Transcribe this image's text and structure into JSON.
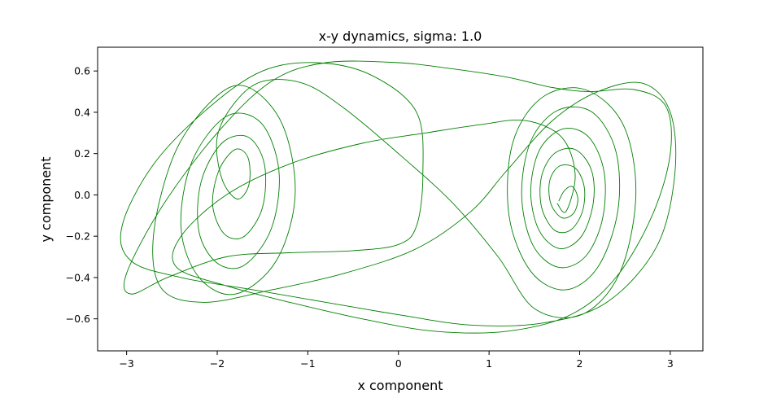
{
  "chart_data": {
    "type": "line",
    "title": "x-y dynamics, sigma: 1.0",
    "xlabel": "x component",
    "ylabel": "y component",
    "xlim": [
      -3.32,
      3.36
    ],
    "ylim": [
      -0.755,
      0.715
    ],
    "x_ticks": [
      -3,
      -2,
      -1,
      0,
      1,
      2,
      3
    ],
    "y_ticks": [
      -0.6,
      -0.4,
      -0.2,
      0.0,
      0.2,
      0.4,
      0.6
    ],
    "x_tick_labels": [
      "−3",
      "−2",
      "−1",
      "0",
      "1",
      "2",
      "3"
    ],
    "y_tick_labels": [
      "−0.6",
      "−0.4",
      "−0.2",
      "0.0",
      "0.2",
      "0.4",
      "0.6"
    ],
    "grid": false,
    "series": [
      {
        "color": "#008000",
        "points": [
          [
            1.77,
            -0.03
          ],
          [
            1.83,
            0.02
          ],
          [
            1.92,
            0.04
          ],
          [
            1.98,
            -0.02
          ],
          [
            1.93,
            -0.09
          ],
          [
            1.8,
            -0.11
          ],
          [
            1.68,
            -0.04
          ],
          [
            1.67,
            0.07
          ],
          [
            1.78,
            0.14
          ],
          [
            1.95,
            0.13
          ],
          [
            2.05,
            0.04
          ],
          [
            2.03,
            -0.08
          ],
          [
            1.9,
            -0.17
          ],
          [
            1.72,
            -0.17
          ],
          [
            1.58,
            -0.06
          ],
          [
            1.58,
            0.09
          ],
          [
            1.72,
            0.2
          ],
          [
            1.95,
            0.22
          ],
          [
            2.13,
            0.12
          ],
          [
            2.15,
            -0.04
          ],
          [
            2.02,
            -0.2
          ],
          [
            1.78,
            -0.26
          ],
          [
            1.55,
            -0.17
          ],
          [
            1.46,
            0.02
          ],
          [
            1.56,
            0.22
          ],
          [
            1.82,
            0.32
          ],
          [
            2.1,
            0.28
          ],
          [
            2.27,
            0.11
          ],
          [
            2.25,
            -0.12
          ],
          [
            2.06,
            -0.3
          ],
          [
            1.76,
            -0.35
          ],
          [
            1.48,
            -0.24
          ],
          [
            1.36,
            0.0
          ],
          [
            1.46,
            0.26
          ],
          [
            1.76,
            0.41
          ],
          [
            2.14,
            0.4
          ],
          [
            2.4,
            0.21
          ],
          [
            2.42,
            -0.08
          ],
          [
            2.2,
            -0.35
          ],
          [
            1.84,
            -0.46
          ],
          [
            1.46,
            -0.37
          ],
          [
            1.22,
            -0.1
          ],
          [
            1.26,
            0.25
          ],
          [
            1.58,
            0.47
          ],
          [
            2.06,
            0.51
          ],
          [
            2.48,
            0.34
          ],
          [
            2.62,
            0.0
          ],
          [
            2.44,
            -0.38
          ],
          [
            2.02,
            -0.58
          ],
          [
            1.5,
            -0.55
          ],
          [
            1.1,
            -0.3
          ],
          [
            0.6,
            -0.04
          ],
          [
            0.0,
            0.2
          ],
          [
            -0.6,
            0.42
          ],
          [
            -1.05,
            0.54
          ],
          [
            -1.5,
            0.55
          ],
          [
            -1.8,
            0.45
          ],
          [
            -2.0,
            0.28
          ],
          [
            -1.95,
            0.08
          ],
          [
            -1.78,
            -0.02
          ],
          [
            -1.65,
            0.05
          ],
          [
            -1.66,
            0.18
          ],
          [
            -1.8,
            0.22
          ],
          [
            -1.98,
            0.12
          ],
          [
            -2.05,
            -0.05
          ],
          [
            -1.92,
            -0.19
          ],
          [
            -1.7,
            -0.2
          ],
          [
            -1.5,
            -0.06
          ],
          [
            -1.48,
            0.15
          ],
          [
            -1.66,
            0.28
          ],
          [
            -1.95,
            0.25
          ],
          [
            -2.18,
            0.06
          ],
          [
            -2.2,
            -0.18
          ],
          [
            -2.0,
            -0.33
          ],
          [
            -1.7,
            -0.34
          ],
          [
            -1.4,
            -0.16
          ],
          [
            -1.32,
            0.12
          ],
          [
            -1.52,
            0.35
          ],
          [
            -1.9,
            0.38
          ],
          [
            -2.28,
            0.16
          ],
          [
            -2.4,
            -0.16
          ],
          [
            -2.2,
            -0.4
          ],
          [
            -1.8,
            -0.48
          ],
          [
            -1.35,
            -0.32
          ],
          [
            -1.14,
            0.0
          ],
          [
            -1.28,
            0.34
          ],
          [
            -1.65,
            0.52
          ],
          [
            -2.0,
            0.48
          ],
          [
            -2.45,
            0.22
          ],
          [
            -2.7,
            -0.18
          ],
          [
            -2.62,
            -0.45
          ],
          [
            -2.15,
            -0.52
          ],
          [
            -1.4,
            -0.46
          ],
          [
            -0.6,
            -0.38
          ],
          [
            0.2,
            -0.26
          ],
          [
            0.8,
            -0.08
          ],
          [
            1.2,
            0.12
          ],
          [
            1.7,
            0.36
          ],
          [
            2.2,
            0.5
          ],
          [
            2.7,
            0.54
          ],
          [
            3.0,
            0.4
          ],
          [
            3.05,
            0.1
          ],
          [
            2.85,
            -0.25
          ],
          [
            2.3,
            -0.52
          ],
          [
            1.6,
            -0.62
          ],
          [
            0.8,
            -0.63
          ],
          [
            0.0,
            -0.58
          ],
          [
            -0.8,
            -0.52
          ],
          [
            -1.6,
            -0.46
          ],
          [
            -2.4,
            -0.4
          ],
          [
            -2.95,
            -0.32
          ],
          [
            -3.05,
            -0.15
          ],
          [
            -2.7,
            0.15
          ],
          [
            -2.1,
            0.42
          ],
          [
            -1.5,
            0.6
          ],
          [
            -0.9,
            0.64
          ],
          [
            -0.3,
            0.58
          ],
          [
            0.2,
            0.4
          ],
          [
            0.27,
            0.1
          ],
          [
            0.2,
            -0.15
          ],
          [
            0.0,
            -0.24
          ],
          [
            -0.5,
            -0.27
          ],
          [
            -1.2,
            -0.28
          ],
          [
            -1.9,
            -0.3
          ],
          [
            -2.55,
            -0.4
          ],
          [
            -2.95,
            -0.48
          ],
          [
            -3.0,
            -0.38
          ],
          [
            -2.6,
            -0.05
          ],
          [
            -2.0,
            0.3
          ],
          [
            -1.4,
            0.55
          ],
          [
            -0.8,
            0.64
          ],
          [
            0.0,
            0.64
          ],
          [
            0.6,
            0.61
          ],
          [
            1.2,
            0.57
          ],
          [
            1.7,
            0.52
          ],
          [
            2.1,
            0.5
          ],
          [
            2.6,
            0.51
          ],
          [
            2.95,
            0.43
          ],
          [
            3.0,
            0.2
          ],
          [
            2.8,
            -0.1
          ],
          [
            2.4,
            -0.4
          ],
          [
            1.9,
            -0.58
          ],
          [
            1.2,
            -0.66
          ],
          [
            0.4,
            -0.66
          ],
          [
            -0.4,
            -0.6
          ],
          [
            -1.2,
            -0.52
          ],
          [
            -1.9,
            -0.44
          ],
          [
            -2.45,
            -0.35
          ],
          [
            -2.4,
            -0.2
          ],
          [
            -1.9,
            0.0
          ],
          [
            -1.2,
            0.15
          ],
          [
            -0.4,
            0.25
          ],
          [
            0.3,
            0.3
          ],
          [
            0.9,
            0.34
          ],
          [
            1.4,
            0.36
          ],
          [
            1.8,
            0.28
          ],
          [
            1.95,
            0.1
          ],
          [
            1.85,
            -0.08
          ],
          [
            1.75,
            -0.04
          ]
        ]
      }
    ]
  }
}
